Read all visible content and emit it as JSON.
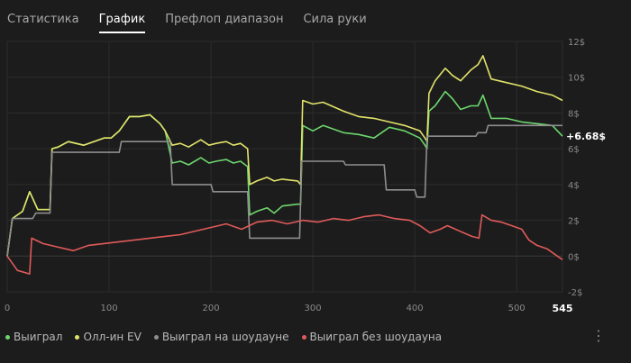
{
  "tabs": [
    {
      "label": "Статистика",
      "active": false
    },
    {
      "label": "График",
      "active": true
    },
    {
      "label": "Префлоп диапазон",
      "active": false
    },
    {
      "label": "Сила руки",
      "active": false
    }
  ],
  "colors": {
    "won": "#6dd66d",
    "allin_ev": "#e2e26a",
    "showdown": "#8e8e8e",
    "no_showdown": "#e05a5a"
  },
  "legend": [
    {
      "label": "Выиграл",
      "color": "#6dd66d"
    },
    {
      "label": "Олл-ин EV",
      "color": "#e2e26a"
    },
    {
      "label": "Выиграл на шоудауне",
      "color": "#8e8e8e"
    },
    {
      "label": "Выиграл без шоудауна",
      "color": "#e05a5a"
    }
  ],
  "menu_icon": "more-vertical-icon",
  "chart_data": {
    "type": "line",
    "x_ticks": [
      0,
      100,
      200,
      300,
      400,
      500
    ],
    "x_end_label": "545",
    "xlim": [
      0,
      545
    ],
    "y_ticks": [
      -2,
      0,
      2,
      4,
      6,
      8,
      10,
      12
    ],
    "y_tick_labels": [
      "-2$",
      "0$",
      "2$",
      "4$",
      "6$",
      "8$",
      "10$",
      "12$"
    ],
    "ylim": [
      -2,
      12
    ],
    "current_value_label": "+6.68$",
    "series": [
      {
        "name": "Выиграл",
        "color": "#6dd66d",
        "points": [
          [
            0,
            0
          ],
          [
            5,
            2.1
          ],
          [
            15,
            2.5
          ],
          [
            22,
            3.6
          ],
          [
            30,
            2.6
          ],
          [
            42,
            2.6
          ],
          [
            44,
            6.0
          ],
          [
            50,
            6.1
          ],
          [
            60,
            6.4
          ],
          [
            75,
            6.2
          ],
          [
            85,
            6.4
          ],
          [
            95,
            6.6
          ],
          [
            102,
            6.6
          ],
          [
            110,
            7.0
          ],
          [
            120,
            7.8
          ],
          [
            130,
            7.8
          ],
          [
            140,
            7.9
          ],
          [
            150,
            7.4
          ],
          [
            155,
            7.0
          ],
          [
            162,
            5.2
          ],
          [
            170,
            5.3
          ],
          [
            178,
            5.1
          ],
          [
            190,
            5.5
          ],
          [
            198,
            5.2
          ],
          [
            205,
            5.3
          ],
          [
            215,
            5.4
          ],
          [
            222,
            5.2
          ],
          [
            229,
            5.3
          ],
          [
            236,
            5.0
          ],
          [
            238,
            2.3
          ],
          [
            245,
            2.5
          ],
          [
            255,
            2.7
          ],
          [
            262,
            2.4
          ],
          [
            270,
            2.8
          ],
          [
            285,
            2.9
          ],
          [
            288,
            2.9
          ],
          [
            290,
            7.3
          ],
          [
            300,
            7.0
          ],
          [
            310,
            7.3
          ],
          [
            330,
            6.9
          ],
          [
            345,
            6.8
          ],
          [
            360,
            6.6
          ],
          [
            375,
            7.2
          ],
          [
            390,
            7.0
          ],
          [
            405,
            6.6
          ],
          [
            410,
            6.2
          ],
          [
            412,
            6.0
          ],
          [
            414,
            8.1
          ],
          [
            420,
            8.4
          ],
          [
            430,
            9.2
          ],
          [
            437,
            8.8
          ],
          [
            445,
            8.2
          ],
          [
            455,
            8.4
          ],
          [
            462,
            8.4
          ],
          [
            467,
            9.0
          ],
          [
            475,
            7.7
          ],
          [
            490,
            7.7
          ],
          [
            505,
            7.5
          ],
          [
            520,
            7.4
          ],
          [
            535,
            7.3
          ],
          [
            545,
            6.7
          ]
        ]
      },
      {
        "name": "Олл-ин EV",
        "color": "#e2e26a",
        "points": [
          [
            0,
            0
          ],
          [
            5,
            2.1
          ],
          [
            15,
            2.5
          ],
          [
            22,
            3.6
          ],
          [
            30,
            2.6
          ],
          [
            42,
            2.6
          ],
          [
            44,
            6.0
          ],
          [
            50,
            6.1
          ],
          [
            60,
            6.4
          ],
          [
            75,
            6.2
          ],
          [
            85,
            6.4
          ],
          [
            95,
            6.6
          ],
          [
            102,
            6.6
          ],
          [
            110,
            7.0
          ],
          [
            120,
            7.8
          ],
          [
            130,
            7.8
          ],
          [
            140,
            7.9
          ],
          [
            150,
            7.4
          ],
          [
            155,
            7.0
          ],
          [
            162,
            6.2
          ],
          [
            170,
            6.3
          ],
          [
            178,
            6.1
          ],
          [
            190,
            6.5
          ],
          [
            198,
            6.2
          ],
          [
            205,
            6.3
          ],
          [
            215,
            6.4
          ],
          [
            222,
            6.2
          ],
          [
            229,
            6.3
          ],
          [
            236,
            6.0
          ],
          [
            238,
            4.0
          ],
          [
            245,
            4.2
          ],
          [
            255,
            4.4
          ],
          [
            262,
            4.2
          ],
          [
            270,
            4.3
          ],
          [
            285,
            4.2
          ],
          [
            288,
            4.0
          ],
          [
            290,
            8.7
          ],
          [
            300,
            8.5
          ],
          [
            310,
            8.6
          ],
          [
            330,
            8.1
          ],
          [
            345,
            7.8
          ],
          [
            360,
            7.7
          ],
          [
            375,
            7.5
          ],
          [
            390,
            7.3
          ],
          [
            405,
            7.0
          ],
          [
            410,
            6.6
          ],
          [
            412,
            6.4
          ],
          [
            414,
            9.1
          ],
          [
            420,
            9.8
          ],
          [
            430,
            10.5
          ],
          [
            437,
            10.1
          ],
          [
            445,
            9.8
          ],
          [
            455,
            10.4
          ],
          [
            462,
            10.7
          ],
          [
            467,
            11.2
          ],
          [
            475,
            9.9
          ],
          [
            490,
            9.7
          ],
          [
            505,
            9.5
          ],
          [
            520,
            9.2
          ],
          [
            535,
            9.0
          ],
          [
            545,
            8.7
          ]
        ]
      },
      {
        "name": "Выиграл на шоудауне",
        "color": "#8e8e8e",
        "points": [
          [
            0,
            0
          ],
          [
            5,
            2.1
          ],
          [
            25,
            2.1
          ],
          [
            28,
            2.4
          ],
          [
            42,
            2.4
          ],
          [
            44,
            5.8
          ],
          [
            110,
            5.8
          ],
          [
            112,
            6.4
          ],
          [
            160,
            6.4
          ],
          [
            162,
            4.0
          ],
          [
            200,
            4.0
          ],
          [
            202,
            3.6
          ],
          [
            236,
            3.6
          ],
          [
            238,
            1.0
          ],
          [
            287,
            1.0
          ],
          [
            289,
            5.3
          ],
          [
            330,
            5.3
          ],
          [
            332,
            5.1
          ],
          [
            370,
            5.1
          ],
          [
            372,
            3.7
          ],
          [
            400,
            3.7
          ],
          [
            402,
            3.3
          ],
          [
            410,
            3.3
          ],
          [
            412,
            6.7
          ],
          [
            460,
            6.7
          ],
          [
            462,
            6.9
          ],
          [
            470,
            6.9
          ],
          [
            472,
            7.3
          ],
          [
            545,
            7.3
          ]
        ]
      },
      {
        "name": "Выиграл без шоудауна",
        "color": "#e05a5a",
        "points": [
          [
            0,
            0
          ],
          [
            10,
            -0.8
          ],
          [
            22,
            -1.0
          ],
          [
            24,
            1.0
          ],
          [
            35,
            0.7
          ],
          [
            50,
            0.5
          ],
          [
            65,
            0.3
          ],
          [
            80,
            0.6
          ],
          [
            95,
            0.7
          ],
          [
            110,
            0.8
          ],
          [
            125,
            0.9
          ],
          [
            140,
            1.0
          ],
          [
            155,
            1.1
          ],
          [
            170,
            1.2
          ],
          [
            185,
            1.4
          ],
          [
            200,
            1.6
          ],
          [
            215,
            1.8
          ],
          [
            230,
            1.5
          ],
          [
            245,
            1.9
          ],
          [
            260,
            2.0
          ],
          [
            275,
            1.8
          ],
          [
            290,
            2.0
          ],
          [
            305,
            1.9
          ],
          [
            320,
            2.1
          ],
          [
            335,
            2.0
          ],
          [
            350,
            2.2
          ],
          [
            365,
            2.3
          ],
          [
            380,
            2.1
          ],
          [
            395,
            2.0
          ],
          [
            405,
            1.7
          ],
          [
            415,
            1.3
          ],
          [
            425,
            1.5
          ],
          [
            432,
            1.7
          ],
          [
            440,
            1.5
          ],
          [
            448,
            1.3
          ],
          [
            456,
            1.1
          ],
          [
            463,
            1.0
          ],
          [
            466,
            2.3
          ],
          [
            475,
            2.0
          ],
          [
            485,
            1.9
          ],
          [
            495,
            1.7
          ],
          [
            505,
            1.5
          ],
          [
            512,
            0.9
          ],
          [
            520,
            0.6
          ],
          [
            530,
            0.4
          ],
          [
            540,
            0.0
          ],
          [
            545,
            -0.2
          ]
        ]
      }
    ]
  }
}
